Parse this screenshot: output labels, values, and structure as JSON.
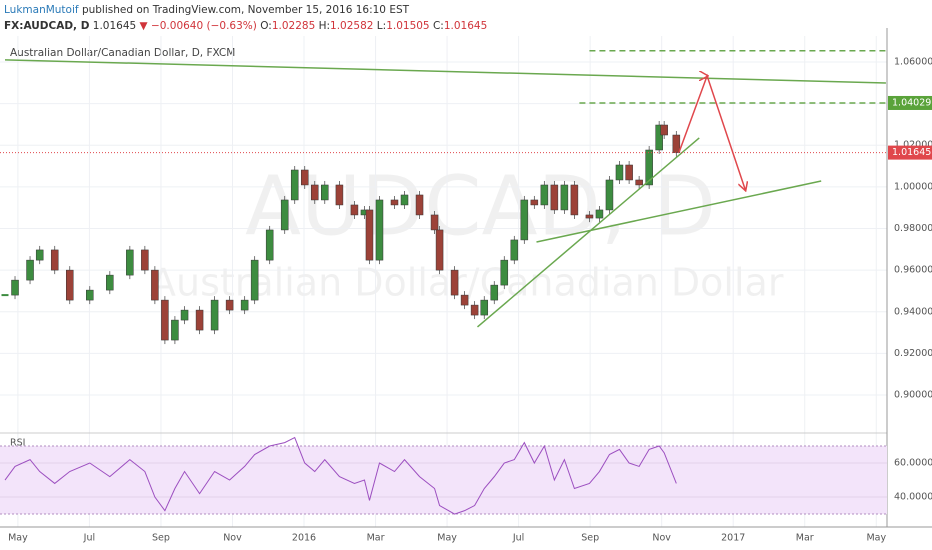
{
  "chart_data": {
    "type": "candlestick",
    "header": {
      "author": "LukmanMutoif",
      "published": "published on TradingView.com, November 15, 2016 16:10 EST",
      "symbol": "FX:AUDCAD, D",
      "price": "1.01645",
      "arrow": "▼",
      "change": "−0.00640 (−0.63%)",
      "ohlc": [
        {
          "key": "O:",
          "value": "1.02285"
        },
        {
          "key": "H:",
          "value": "1.02582"
        },
        {
          "key": "L:",
          "value": "1.01505"
        },
        {
          "key": "C:",
          "value": "1.01645"
        }
      ]
    },
    "title": "Australian Dollar/Canadian Dollar, D, FXCM",
    "watermarks": [
      "AUDCAD, D",
      "Australian Dollar/Canadian Dollar"
    ],
    "x": [
      -0.36,
      -0.08,
      0.34,
      0.61,
      1.03,
      1.45,
      2.01,
      2.57,
      3.13,
      3.55,
      3.83,
      4.11,
      4.39,
      4.66,
      5.08,
      5.5,
      5.92,
      6.34,
      6.62,
      7.04,
      7.46,
      7.74,
      8.02,
      8.3,
      8.58,
      8.99,
      9.41,
      9.69,
      9.83,
      10.11,
      10.53,
      10.81,
      11.23,
      11.65,
      11.79,
      12.21,
      12.49,
      12.77,
      13.04,
      13.32,
      13.6,
      13.88,
      14.16,
      14.44,
      14.72,
      15,
      15.28,
      15.56,
      15.98,
      16.26,
      16.54,
      16.82,
      17.09,
      17.37,
      17.65,
      17.93,
      18.07,
      18.41
    ],
    "series": [
      {
        "name": "AUDCAD",
        "up_color": "#3d8c40",
        "down_color": "#9c4238",
        "values": [
          0.948,
          0.9552,
          0.9648,
          0.9697,
          0.96,
          0.9456,
          0.9504,
          0.9576,
          0.9697,
          0.96,
          0.9456,
          0.9264,
          0.936,
          0.9408,
          0.9312,
          0.9456,
          0.9408,
          0.9456,
          0.9648,
          0.9793,
          0.9937,
          1.0081,
          1.0009,
          0.9937,
          1.0009,
          0.9913,
          0.9865,
          0.9889,
          0.9648,
          0.9937,
          0.9913,
          0.9961,
          0.9865,
          0.9793,
          0.96,
          0.948,
          0.9432,
          0.9384,
          0.9456,
          0.9528,
          0.9648,
          0.9745,
          0.9937,
          0.9913,
          1.0009,
          0.9889,
          1.0009,
          0.9865,
          0.985,
          0.9889,
          1.0033,
          1.0105,
          1.0033,
          1.0009,
          1.0177,
          1.0297,
          1.0249,
          1.01645
        ]
      }
    ],
    "xlim": [
      -0.5,
      24.3
    ],
    "xticks": [
      {
        "value": 0,
        "label": "May"
      },
      {
        "value": 2,
        "label": "Jul"
      },
      {
        "value": 4,
        "label": "Sep"
      },
      {
        "value": 6,
        "label": "Nov"
      },
      {
        "value": 8,
        "label": "2016"
      },
      {
        "value": 10,
        "label": "Mar"
      },
      {
        "value": 12,
        "label": "May"
      },
      {
        "value": 14,
        "label": "Jul"
      },
      {
        "value": 16,
        "label": "Sep"
      },
      {
        "value": 18,
        "label": "Nov"
      },
      {
        "value": 20,
        "label": "2017"
      },
      {
        "value": 22,
        "label": "Mar"
      },
      {
        "value": 24,
        "label": "May"
      }
    ],
    "ylim": [
      0.8832,
      1.0715
    ],
    "yticks": [
      {
        "value": 0.9,
        "label": "0.90000"
      },
      {
        "value": 0.92,
        "label": "0.92000"
      },
      {
        "value": 0.94,
        "label": "0.94000"
      },
      {
        "value": 0.96,
        "label": "0.96000"
      },
      {
        "value": 0.98,
        "label": "0.98000"
      },
      {
        "value": 1.0,
        "label": "1.00000"
      },
      {
        "value": 1.02,
        "label": "1.02000"
      },
      {
        "value": 1.04,
        "label": "1.04000"
      },
      {
        "value": 1.06,
        "label": "1.06000"
      }
    ],
    "grid": true,
    "price_labels": [
      {
        "value": 1.04029,
        "color": "#5aa33a"
      },
      {
        "value": 1.01645,
        "color": "#e0474c"
      }
    ],
    "drawings": [
      {
        "points": [
          [
            -0.36,
            1.061
          ],
          [
            24.27,
            1.0499
          ]
        ],
        "color": "#6aa84f",
        "style": "solid"
      },
      {
        "points": [
          [
            15.7,
            1.04029
          ],
          [
            24.27,
            1.04029
          ]
        ],
        "color": "#6aa84f",
        "style": "dashed"
      },
      {
        "points": [
          [
            15.98,
            1.0654
          ],
          [
            24.27,
            1.0654
          ]
        ],
        "color": "#6aa84f",
        "style": "dashed"
      },
      {
        "points": [
          [
            12.85,
            0.9327
          ],
          [
            19.05,
            1.0235
          ]
        ],
        "color": "#6aa84f",
        "style": "solid"
      },
      {
        "points": [
          [
            14.5,
            0.9735
          ],
          [
            22.46,
            1.0028
          ]
        ],
        "color": "#6aa84f",
        "style": "solid"
      },
      {
        "points": [
          [
            18.49,
            1.0168
          ],
          [
            19.27,
            1.0533
          ],
          [
            20.34,
            0.9985
          ]
        ],
        "color": "#e0474c",
        "style": "arrow"
      }
    ],
    "rsi": {
      "title": "RSI",
      "color": "#9c4fc0",
      "values": [
        50,
        58,
        62,
        55,
        48,
        55,
        60,
        52,
        62,
        55,
        40,
        32,
        45,
        55,
        42,
        55,
        50,
        58,
        65,
        70,
        72,
        75,
        60,
        55,
        62,
        52,
        48,
        50,
        38,
        60,
        55,
        62,
        52,
        45,
        35,
        30,
        32,
        35,
        45,
        52,
        60,
        62,
        72,
        60,
        70,
        50,
        62,
        45,
        48,
        55,
        65,
        68,
        60,
        58,
        68,
        70,
        66,
        48
      ],
      "ylim": [
        26.5,
        75.3
      ],
      "band": [
        30,
        70
      ],
      "yticks": [
        {
          "value": 40,
          "label": "40.0000"
        },
        {
          "value": 60,
          "label": "60.0000"
        }
      ]
    }
  }
}
